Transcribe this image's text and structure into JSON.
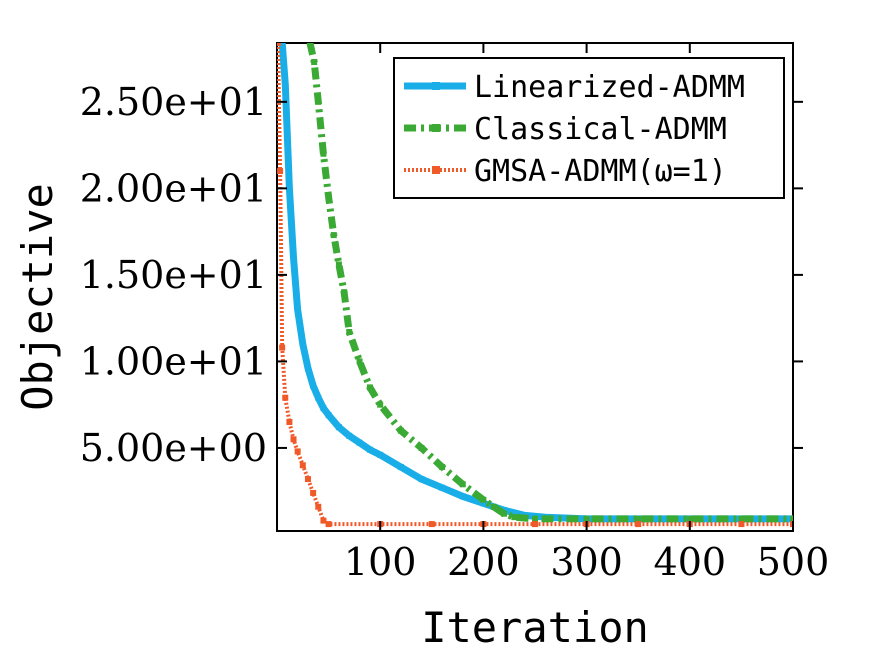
{
  "chart_data": {
    "type": "line",
    "title": "",
    "xlabel": "Iteration",
    "ylabel": "Objective",
    "xlim": [
      0,
      500
    ],
    "ylim": [
      0.2,
      28.4
    ],
    "x_ticks": [
      100,
      200,
      300,
      400,
      500
    ],
    "x_tick_labels": [
      "100",
      "200",
      "300",
      "400",
      "500"
    ],
    "y_ticks": [
      5,
      10,
      15,
      20,
      25
    ],
    "y_tick_labels": [
      "5.00e+00",
      "1.00e+01",
      "1.50e+01",
      "2.00e+01",
      "2.50e+01"
    ],
    "grid": false,
    "legend_position": "top-right",
    "series": [
      {
        "name": "Linearized-ADMM",
        "color": "#1aaee8",
        "style": "solid",
        "x": [
          5,
          8,
          12,
          16,
          20,
          25,
          30,
          35,
          40,
          45,
          50,
          60,
          70,
          80,
          90,
          100,
          120,
          140,
          160,
          180,
          200,
          220,
          240,
          260,
          300,
          350,
          400,
          450,
          500
        ],
        "y": [
          28.4,
          26.0,
          20.0,
          16.0,
          13.0,
          11.0,
          9.6,
          8.6,
          7.9,
          7.3,
          6.9,
          6.2,
          5.7,
          5.3,
          4.9,
          4.6,
          3.9,
          3.2,
          2.7,
          2.2,
          1.8,
          1.4,
          1.1,
          1.0,
          0.9,
          0.9,
          0.9,
          0.9,
          0.9
        ]
      },
      {
        "name": "Classical-ADMM",
        "color": "#3aaa35",
        "style": "dash-dot",
        "x": [
          32,
          36,
          40,
          45,
          50,
          55,
          60,
          65,
          70,
          80,
          90,
          100,
          120,
          140,
          160,
          180,
          200,
          210,
          220,
          230,
          250,
          300,
          350,
          400,
          450,
          500
        ],
        "y": [
          28.4,
          27.3,
          25.0,
          22.0,
          19.5,
          17.3,
          15.6,
          14.0,
          11.7,
          10.0,
          8.5,
          7.5,
          6.0,
          5.0,
          3.9,
          2.9,
          2.0,
          1.6,
          1.2,
          1.0,
          0.9,
          0.9,
          0.9,
          0.9,
          0.9,
          0.9
        ]
      },
      {
        "name": "GMSA-ADMM(ω=1)",
        "color": "#f05a28",
        "style": "dotted",
        "x": [
          1,
          3,
          5,
          8,
          12,
          16,
          20,
          25,
          30,
          35,
          40,
          45,
          50,
          100,
          150,
          200,
          250,
          300,
          350,
          400,
          450,
          500
        ],
        "y": [
          28.4,
          21.0,
          10.8,
          7.9,
          6.5,
          5.5,
          4.8,
          4.0,
          3.2,
          2.4,
          1.6,
          0.8,
          0.6,
          0.6,
          0.6,
          0.6,
          0.6,
          0.6,
          0.6,
          0.6,
          0.6,
          0.6
        ]
      }
    ]
  }
}
